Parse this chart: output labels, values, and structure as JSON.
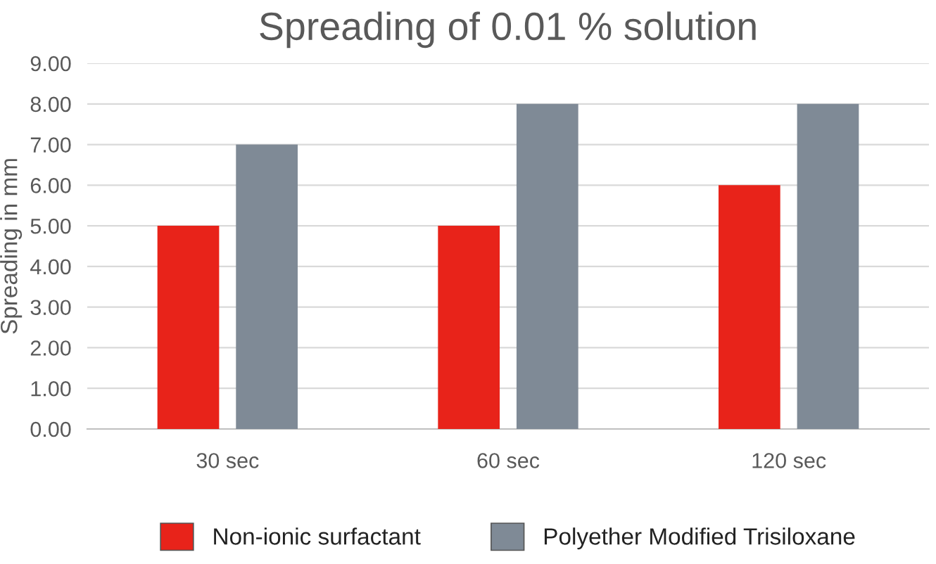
{
  "chart_data": {
    "type": "bar",
    "title": "Spreading of 0.01 % solution",
    "ylabel": "Spreading in mm",
    "categories": [
      "30 sec",
      "60 sec",
      "120 sec"
    ],
    "series": [
      {
        "name": "Non-ionic surfactant",
        "color": "#e8231a",
        "values": [
          5,
          5,
          6
        ]
      },
      {
        "name": "Polyether Modified Trisiloxane",
        "color": "#7f8a96",
        "values": [
          7,
          8,
          8
        ]
      }
    ],
    "ylim": [
      0,
      9
    ],
    "yticks": [
      {
        "value": 0,
        "label": "0.00"
      },
      {
        "value": 1,
        "label": "1.00"
      },
      {
        "value": 2,
        "label": "2.00"
      },
      {
        "value": 3,
        "label": "3.00"
      },
      {
        "value": 4,
        "label": "4.00"
      },
      {
        "value": 5,
        "label": "5.00"
      },
      {
        "value": 6,
        "label": "6.00"
      },
      {
        "value": 7,
        "label": "7.00"
      },
      {
        "value": 8,
        "label": "8.00"
      },
      {
        "value": 9,
        "label": "9.00"
      }
    ],
    "grid": "y",
    "legend": "bottom"
  }
}
